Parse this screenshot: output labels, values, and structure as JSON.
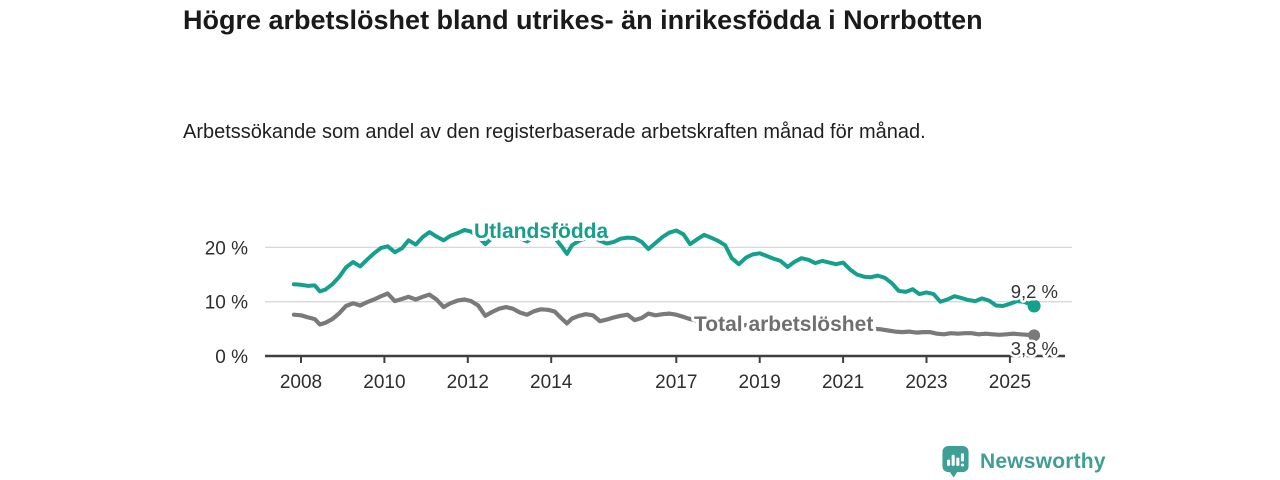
{
  "header": {
    "title": "Högre arbetslöshet bland utrikes- än inrikesfödda i Norrbotten",
    "subtitle": "Arbetssökande som andel av den registerbaserade arbetskraften månad för månad."
  },
  "footer": {
    "brand": "Newsworthy",
    "logo_icon": "bar-chart-speech-bubble",
    "brand_color": "#3f9e95"
  },
  "chart_data": {
    "type": "line",
    "title": "Högre arbetslöshet bland utrikes- än inrikesfödda i Norrbotten",
    "subtitle": "Arbetssökande som andel av den registerbaserade arbetskraften månad för månad.",
    "xlabel": "",
    "ylabel": "",
    "xlim": [
      2007.1,
      2026.3
    ],
    "ylim": [
      0,
      24
    ],
    "grid": "horizontal",
    "legend_position": "inline-labels",
    "x_ticks": [
      2008,
      2010,
      2012,
      2014,
      2017,
      2019,
      2021,
      2023,
      2025
    ],
    "y_ticks": [
      {
        "value": 0,
        "label": "0 %"
      },
      {
        "value": 10,
        "label": "10 %"
      },
      {
        "value": 20,
        "label": "20 %"
      }
    ],
    "series": [
      {
        "name": "Utlandsfödda",
        "color": "#14a08c",
        "end_label": "9,2 %",
        "end_value": 9.2,
        "points": [
          [
            2007.83,
            13.2
          ],
          [
            2008.0,
            13.1
          ],
          [
            2008.17,
            12.9
          ],
          [
            2008.33,
            13.0
          ],
          [
            2008.45,
            11.9
          ],
          [
            2008.58,
            12.2
          ],
          [
            2008.75,
            13.2
          ],
          [
            2008.92,
            14.6
          ],
          [
            2009.08,
            16.3
          ],
          [
            2009.25,
            17.3
          ],
          [
            2009.42,
            16.5
          ],
          [
            2009.58,
            17.7
          ],
          [
            2009.75,
            18.9
          ],
          [
            2009.92,
            19.9
          ],
          [
            2010.08,
            20.2
          ],
          [
            2010.25,
            19.1
          ],
          [
            2010.42,
            19.8
          ],
          [
            2010.58,
            21.3
          ],
          [
            2010.75,
            20.5
          ],
          [
            2010.92,
            21.9
          ],
          [
            2011.08,
            22.8
          ],
          [
            2011.25,
            22.0
          ],
          [
            2011.42,
            21.3
          ],
          [
            2011.58,
            22.1
          ],
          [
            2011.75,
            22.6
          ],
          [
            2011.92,
            23.2
          ],
          [
            2012.08,
            22.9
          ],
          [
            2012.25,
            21.9
          ],
          [
            2012.42,
            20.6
          ],
          [
            2012.58,
            21.7
          ],
          [
            2012.75,
            22.2
          ],
          [
            2012.92,
            22.7
          ],
          [
            2013.08,
            22.4
          ],
          [
            2013.25,
            21.7
          ],
          [
            2013.42,
            21.1
          ],
          [
            2013.58,
            21.9
          ],
          [
            2013.75,
            22.4
          ],
          [
            2013.92,
            22.6
          ],
          [
            2014.08,
            21.8
          ],
          [
            2014.25,
            20.2
          ],
          [
            2014.38,
            18.8
          ],
          [
            2014.5,
            20.4
          ],
          [
            2014.67,
            21.2
          ],
          [
            2014.83,
            21.7
          ],
          [
            2015.0,
            21.9
          ],
          [
            2015.17,
            21.2
          ],
          [
            2015.33,
            20.7
          ],
          [
            2015.5,
            21.0
          ],
          [
            2015.67,
            21.6
          ],
          [
            2015.83,
            21.8
          ],
          [
            2016.0,
            21.7
          ],
          [
            2016.17,
            21.0
          ],
          [
            2016.33,
            19.7
          ],
          [
            2016.5,
            20.8
          ],
          [
            2016.67,
            21.9
          ],
          [
            2016.83,
            22.7
          ],
          [
            2017.0,
            23.1
          ],
          [
            2017.17,
            22.4
          ],
          [
            2017.33,
            20.6
          ],
          [
            2017.5,
            21.5
          ],
          [
            2017.67,
            22.3
          ],
          [
            2017.83,
            21.8
          ],
          [
            2018.0,
            21.2
          ],
          [
            2018.17,
            20.4
          ],
          [
            2018.33,
            18.0
          ],
          [
            2018.5,
            16.9
          ],
          [
            2018.67,
            18.1
          ],
          [
            2018.83,
            18.7
          ],
          [
            2019.0,
            18.9
          ],
          [
            2019.17,
            18.4
          ],
          [
            2019.33,
            17.9
          ],
          [
            2019.5,
            17.5
          ],
          [
            2019.67,
            16.4
          ],
          [
            2019.83,
            17.3
          ],
          [
            2020.0,
            18.0
          ],
          [
            2020.17,
            17.7
          ],
          [
            2020.33,
            17.1
          ],
          [
            2020.5,
            17.5
          ],
          [
            2020.67,
            17.2
          ],
          [
            2020.83,
            16.9
          ],
          [
            2021.0,
            17.2
          ],
          [
            2021.17,
            15.9
          ],
          [
            2021.33,
            15.0
          ],
          [
            2021.5,
            14.6
          ],
          [
            2021.67,
            14.5
          ],
          [
            2021.83,
            14.8
          ],
          [
            2022.0,
            14.4
          ],
          [
            2022.17,
            13.4
          ],
          [
            2022.33,
            12.0
          ],
          [
            2022.5,
            11.8
          ],
          [
            2022.67,
            12.3
          ],
          [
            2022.83,
            11.4
          ],
          [
            2023.0,
            11.7
          ],
          [
            2023.17,
            11.4
          ],
          [
            2023.33,
            10.0
          ],
          [
            2023.5,
            10.4
          ],
          [
            2023.67,
            11.0
          ],
          [
            2023.83,
            10.7
          ],
          [
            2024.0,
            10.3
          ],
          [
            2024.17,
            10.1
          ],
          [
            2024.33,
            10.6
          ],
          [
            2024.5,
            10.2
          ],
          [
            2024.67,
            9.3
          ],
          [
            2024.83,
            9.2
          ],
          [
            2025.0,
            9.6
          ],
          [
            2025.17,
            10.1
          ],
          [
            2025.33,
            10.0
          ],
          [
            2025.5,
            9.5
          ],
          [
            2025.58,
            9.2
          ]
        ]
      },
      {
        "name": "Total arbetslöshet",
        "color": "#7a7a7a",
        "end_label": "3,8 %",
        "end_value": 3.8,
        "points": [
          [
            2007.83,
            7.6
          ],
          [
            2008.0,
            7.5
          ],
          [
            2008.17,
            7.1
          ],
          [
            2008.33,
            6.8
          ],
          [
            2008.45,
            5.8
          ],
          [
            2008.58,
            6.1
          ],
          [
            2008.75,
            6.8
          ],
          [
            2008.92,
            7.9
          ],
          [
            2009.08,
            9.2
          ],
          [
            2009.25,
            9.7
          ],
          [
            2009.42,
            9.3
          ],
          [
            2009.58,
            9.9
          ],
          [
            2009.75,
            10.4
          ],
          [
            2009.92,
            11.0
          ],
          [
            2010.08,
            11.5
          ],
          [
            2010.25,
            10.1
          ],
          [
            2010.42,
            10.5
          ],
          [
            2010.58,
            10.9
          ],
          [
            2010.75,
            10.4
          ],
          [
            2010.92,
            10.9
          ],
          [
            2011.08,
            11.3
          ],
          [
            2011.25,
            10.4
          ],
          [
            2011.42,
            9.0
          ],
          [
            2011.58,
            9.7
          ],
          [
            2011.75,
            10.2
          ],
          [
            2011.92,
            10.4
          ],
          [
            2012.08,
            10.1
          ],
          [
            2012.25,
            9.3
          ],
          [
            2012.42,
            7.4
          ],
          [
            2012.58,
            8.1
          ],
          [
            2012.75,
            8.7
          ],
          [
            2012.92,
            9.0
          ],
          [
            2013.08,
            8.7
          ],
          [
            2013.25,
            8.0
          ],
          [
            2013.42,
            7.6
          ],
          [
            2013.58,
            8.2
          ],
          [
            2013.75,
            8.6
          ],
          [
            2013.92,
            8.5
          ],
          [
            2014.08,
            8.2
          ],
          [
            2014.25,
            6.9
          ],
          [
            2014.38,
            6.0
          ],
          [
            2014.5,
            6.9
          ],
          [
            2014.67,
            7.4
          ],
          [
            2014.83,
            7.7
          ],
          [
            2015.0,
            7.5
          ],
          [
            2015.17,
            6.4
          ],
          [
            2015.33,
            6.7
          ],
          [
            2015.5,
            7.1
          ],
          [
            2015.67,
            7.4
          ],
          [
            2015.83,
            7.6
          ],
          [
            2016.0,
            6.6
          ],
          [
            2016.17,
            7.0
          ],
          [
            2016.33,
            7.8
          ],
          [
            2016.5,
            7.5
          ],
          [
            2016.67,
            7.7
          ],
          [
            2016.83,
            7.8
          ],
          [
            2017.0,
            7.6
          ],
          [
            2017.17,
            7.2
          ],
          [
            2017.33,
            6.8
          ],
          [
            2017.5,
            6.5
          ],
          [
            2017.67,
            6.7
          ],
          [
            2017.83,
            6.9
          ],
          [
            2018.0,
            6.6
          ],
          [
            2018.25,
            5.9
          ],
          [
            2018.5,
            5.5
          ],
          [
            2018.75,
            5.8
          ],
          [
            2019.0,
            5.9
          ],
          [
            2019.25,
            5.5
          ],
          [
            2019.5,
            5.3
          ],
          [
            2019.75,
            5.5
          ],
          [
            2020.0,
            5.7
          ],
          [
            2020.25,
            6.2
          ],
          [
            2020.5,
            6.4
          ],
          [
            2020.75,
            6.1
          ],
          [
            2021.0,
            5.9
          ],
          [
            2021.25,
            5.5
          ],
          [
            2021.5,
            5.2
          ],
          [
            2021.75,
            5.0
          ],
          [
            2021.92,
            4.9
          ],
          [
            2022.08,
            4.7
          ],
          [
            2022.25,
            4.5
          ],
          [
            2022.42,
            4.4
          ],
          [
            2022.58,
            4.5
          ],
          [
            2022.75,
            4.3
          ],
          [
            2022.92,
            4.4
          ],
          [
            2023.08,
            4.4
          ],
          [
            2023.25,
            4.1
          ],
          [
            2023.42,
            4.0
          ],
          [
            2023.58,
            4.2
          ],
          [
            2023.75,
            4.1
          ],
          [
            2023.92,
            4.2
          ],
          [
            2024.08,
            4.2
          ],
          [
            2024.25,
            4.0
          ],
          [
            2024.42,
            4.1
          ],
          [
            2024.58,
            4.0
          ],
          [
            2024.75,
            3.9
          ],
          [
            2024.92,
            4.0
          ],
          [
            2025.08,
            4.1
          ],
          [
            2025.25,
            4.0
          ],
          [
            2025.42,
            3.9
          ],
          [
            2025.58,
            3.8
          ]
        ]
      }
    ]
  }
}
